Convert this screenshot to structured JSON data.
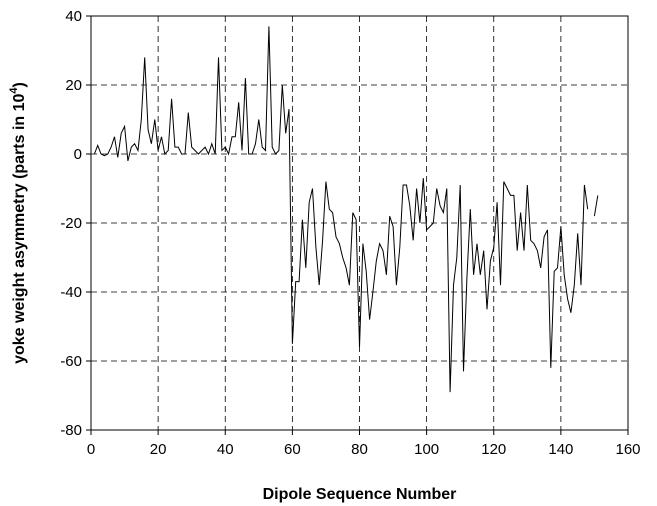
{
  "chart_data": {
    "type": "line",
    "xlabel": "Dipole Sequence Number",
    "ylabel_main": "yoke weight asymmetry (parts in 10",
    "ylabel_sup": "4",
    "ylabel_end": ")",
    "xlim": [
      0,
      160
    ],
    "ylim": [
      -80,
      40
    ],
    "xticks": [
      0,
      20,
      40,
      60,
      80,
      100,
      120,
      140,
      160
    ],
    "yticks": [
      -80,
      -60,
      -40,
      -20,
      0,
      20,
      40
    ],
    "grid": true,
    "series": [
      {
        "segments": [
          {
            "x": [
              1,
              2,
              3,
              4,
              5,
              6,
              7,
              8,
              9,
              10,
              11,
              12,
              13,
              14,
              15,
              16,
              17,
              18,
              19,
              20,
              21,
              22,
              23,
              24,
              25,
              26,
              27,
              28,
              29,
              30,
              31,
              32,
              33,
              34,
              35,
              36,
              37,
              38,
              39,
              40,
              41,
              42,
              43,
              44,
              45,
              46,
              47,
              48,
              49,
              50,
              51,
              52,
              53,
              54,
              55,
              56,
              57,
              58,
              59,
              60,
              61,
              62,
              63,
              64,
              65,
              66,
              67,
              68,
              69,
              70,
              71,
              72,
              73,
              74,
              75,
              76,
              77,
              78,
              79,
              80,
              81,
              82,
              83,
              84,
              85,
              86,
              87,
              88,
              89,
              90,
              91,
              92,
              93,
              94,
              95,
              96,
              97,
              98,
              99,
              100,
              101,
              102,
              103,
              104,
              105,
              106,
              107,
              108,
              109,
              110,
              111,
              112,
              113,
              114,
              115,
              116,
              117,
              118,
              119,
              120,
              121,
              122,
              123,
              124,
              125,
              126,
              127,
              128,
              129,
              130,
              131,
              132,
              133,
              134,
              135,
              136,
              137,
              138,
              139,
              140,
              141,
              142,
              143,
              144,
              145,
              146,
              147,
              148
            ],
            "y": [
              0,
              2.5,
              0,
              -0.5,
              0,
              2,
              5,
              -1,
              6,
              8,
              -2,
              2,
              3,
              1,
              10,
              28,
              7,
              3,
              10,
              1,
              5,
              0,
              1,
              16,
              2,
              2,
              0,
              0,
              12,
              2,
              1,
              0,
              1,
              2,
              0,
              3,
              0,
              28,
              1,
              2,
              0,
              5,
              5,
              15,
              1,
              22,
              0,
              0,
              3,
              10,
              2,
              1,
              37,
              2,
              0,
              1,
              20,
              6,
              13,
              -55,
              -37,
              -37,
              -19,
              -33,
              -14,
              -10,
              -27,
              -38,
              -25,
              -8,
              -16,
              -17,
              -24,
              -26,
              -30,
              -33,
              -38,
              -17,
              -19,
              -56,
              -26,
              -34,
              -48,
              -40,
              -31,
              -26,
              -28,
              -35,
              -18,
              -21,
              -38,
              -27,
              -9,
              -9,
              -15,
              -25,
              -10,
              -20,
              -7,
              -22,
              -21,
              -20,
              -10,
              -15,
              -17,
              -10,
              -69,
              -38,
              -30,
              -9,
              -63,
              -36,
              -16,
              -35,
              -26,
              -35,
              -28,
              -45,
              -31,
              -27,
              -14,
              -38,
              -8,
              -10,
              -12,
              -12,
              -28,
              -17,
              -28,
              -9,
              -25,
              -26,
              -28,
              -33,
              -24,
              -22,
              -62,
              -34,
              -33,
              -21,
              -35,
              -42,
              -46,
              -38,
              -23,
              -38,
              -9,
              -16
            ]
          },
          {
            "x": [
              150,
              151
            ],
            "y": [
              -18,
              -12
            ]
          }
        ]
      }
    ]
  }
}
